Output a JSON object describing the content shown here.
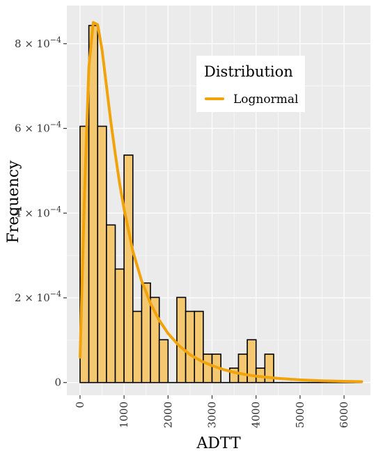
{
  "chart_data": {
    "type": "bar",
    "xlabel": "ADTT",
    "ylabel": "Frequency",
    "xlim": [
      -300,
      6600
    ],
    "ylim": [
      -3e-05,
      0.00089
    ],
    "bin_width": 200,
    "x_ticks": [
      0,
      1000,
      2000,
      3000,
      4000,
      5000,
      6000
    ],
    "x_tick_labels": [
      "0",
      "1000",
      "2000",
      "3000",
      "4000",
      "5000",
      "6000"
    ],
    "y_ticks": [
      0,
      0.0002,
      0.0004,
      0.0006,
      0.0008
    ],
    "y_tick_labels": [
      {
        "mant": "0",
        "exp": ""
      },
      {
        "mant": "2 × 10",
        "exp": "−4"
      },
      {
        "mant": "4 × 10",
        "exp": "−4"
      },
      {
        "mant": "6 × 10",
        "exp": "−4"
      },
      {
        "mant": "8 × 10",
        "exp": "−4"
      }
    ],
    "histogram": {
      "bin_starts": [
        0,
        200,
        400,
        600,
        800,
        1000,
        1200,
        1400,
        1600,
        1800,
        2000,
        2200,
        2400,
        2600,
        2800,
        3000,
        3200,
        3400,
        3600,
        3800,
        4000,
        4200,
        4400,
        4600,
        4800,
        5000,
        5200,
        5400,
        5600,
        5800,
        6000,
        6200
      ],
      "values": [
        0.000605,
        0.000843,
        0.000605,
        0.000372,
        0.000268,
        0.000537,
        0.000168,
        0.000235,
        0.000201,
        0.000101,
        0,
        0.000201,
        0.000168,
        0.000168,
        6.7e-05,
        6.7e-05,
        0,
        3.4e-05,
        6.7e-05,
        0.000101,
        3.4e-05,
        6.7e-05,
        0,
        0,
        0,
        0,
        0,
        0,
        0,
        0,
        0,
        0
      ]
    },
    "series": [
      {
        "name": "Lognormal",
        "color": "#f0a30a",
        "x": [
          0,
          100,
          200,
          300,
          400,
          500,
          600,
          700,
          800,
          900,
          1000,
          1200,
          1400,
          1600,
          1800,
          2000,
          2250,
          2500,
          2750,
          3000,
          3250,
          3500,
          3750,
          4000,
          4500,
          5000,
          5500,
          6000,
          6400
        ],
        "y": [
          6e-05,
          0.00044,
          0.000745,
          0.00085,
          0.000845,
          0.000785,
          0.0007,
          0.000615,
          0.00054,
          0.00047,
          0.00041,
          0.00031,
          0.00024,
          0.000187,
          0.000147,
          0.000116,
          8.7e-05,
          6.6e-05,
          5.1e-05,
          4e-05,
          3.1e-05,
          2.4e-05,
          1.9e-05,
          1.5e-05,
          9.7e-06,
          6.3e-06,
          4.2e-06,
          2.9e-06,
          2.1e-06
        ]
      }
    ],
    "legend": {
      "title": "Distribution",
      "position": "top-right"
    },
    "grid": true,
    "colors": {
      "panel_background": "#ebebeb",
      "grid_major": "#ffffff",
      "bar_fill": "#f3c870",
      "bar_stroke": "#000000",
      "line": "#f0a30a"
    }
  }
}
